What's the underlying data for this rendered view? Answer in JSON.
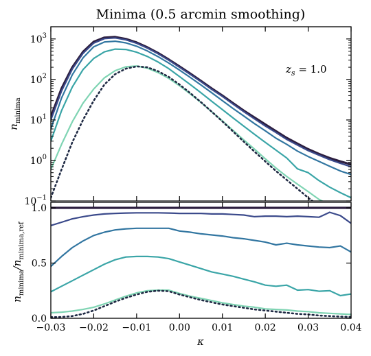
{
  "chart_data": {
    "type": "line",
    "title": "Minima (0.5 arcmin smoothing)",
    "xlabel": "κ",
    "xlim": [
      -0.03,
      0.04
    ],
    "xticks": [
      -0.03,
      -0.02,
      -0.01,
      0.0,
      0.01,
      0.02,
      0.03,
      0.04
    ],
    "xticklabels": [
      "−0.03",
      "−0.02",
      "−0.01",
      "0.00",
      "0.01",
      "0.02",
      "0.03",
      "0.04"
    ],
    "top_panel": {
      "ylabel_main": "n",
      "ylabel_sub": "minima",
      "yscale": "log",
      "ylim": [
        0.1,
        2000
      ],
      "yticks": [
        0.1,
        1,
        10,
        100,
        1000
      ],
      "ytick_bases": [
        "10",
        "10",
        "10",
        "10",
        "10"
      ],
      "ytick_exps": [
        "−1",
        "0",
        "1",
        "2",
        "3"
      ],
      "annotation_main": "z",
      "annotation_sub": "s",
      "annotation_rest": " = 1.0"
    },
    "bottom_panel": {
      "ylabel_main": "n",
      "ylabel_sub": "minima",
      "ylabel_mid": "/n",
      "ylabel_sub2": "minima,ref",
      "ylim": [
        0.0,
        1.05
      ],
      "yticks": [
        0.0,
        0.5,
        1.0
      ],
      "yticklabels": [
        "0.0",
        "0.5",
        "1.0"
      ]
    },
    "x": [
      -0.03,
      -0.0275,
      -0.025,
      -0.0225,
      -0.02,
      -0.0175,
      -0.015,
      -0.0125,
      -0.01,
      -0.0075,
      -0.005,
      -0.0025,
      0.0,
      0.0025,
      0.005,
      0.0075,
      0.01,
      0.0125,
      0.015,
      0.0175,
      0.02,
      0.0225,
      0.025,
      0.0275,
      0.03,
      0.0325,
      0.035,
      0.0375,
      0.04
    ],
    "series_top": [
      {
        "color": "#2c1e3f",
        "width": 3.2,
        "dash": "",
        "values": [
          12,
          60,
          200,
          480,
          850,
          1080,
          1120,
          1000,
          820,
          620,
          450,
          310,
          210,
          140,
          92,
          60,
          40,
          26,
          17,
          11.5,
          7.8,
          5.3,
          3.6,
          2.6,
          1.9,
          1.45,
          1.15,
          0.95,
          0.8
        ]
      },
      {
        "color": "#3b4a8b",
        "width": 2.2,
        "dash": "",
        "values": [
          10,
          52,
          180,
          440,
          790,
          1020,
          1060,
          950,
          780,
          595,
          430,
          298,
          200,
          133,
          88,
          57,
          38,
          24.5,
          16,
          10.6,
          7.1,
          4.9,
          3.3,
          2.4,
          1.75,
          1.35,
          1.05,
          0.85,
          0.7
        ]
      },
      {
        "color": "#3276a1",
        "width": 2.2,
        "dash": "",
        "values": [
          6,
          35,
          130,
          340,
          640,
          840,
          880,
          800,
          660,
          505,
          365,
          254,
          170,
          112,
          73,
          47,
          30,
          19.2,
          12.5,
          8.1,
          5.4,
          3.55,
          2.5,
          1.7,
          1.25,
          0.95,
          0.72,
          0.55,
          0.45
        ]
      },
      {
        "color": "#3aa5a7",
        "width": 2.2,
        "dash": "",
        "values": [
          3,
          17,
          65,
          175,
          330,
          480,
          560,
          550,
          470,
          370,
          270,
          185,
          118,
          75,
          47,
          29,
          18,
          11.2,
          7,
          4.4,
          2.8,
          1.8,
          1.15,
          0.62,
          0.5,
          0.32,
          0.22,
          0.16,
          0.12
        ]
      },
      {
        "color": "#7fd4b3",
        "width": 2.2,
        "dash": "",
        "values": [
          0.6,
          2.5,
          9,
          26,
          58,
          110,
          165,
          205,
          215,
          190,
          148,
          106,
          70,
          44,
          27,
          16,
          9.5,
          5.5,
          3.2,
          1.9,
          1.1,
          0.65,
          0.4,
          0.26,
          0.17,
          0.11,
          0.08,
          0.06,
          0.045
        ]
      },
      {
        "color": "#1f2a44",
        "width": 2.6,
        "dash": "2,4",
        "values": [
          0.12,
          0.6,
          2.8,
          10,
          30,
          75,
          135,
          185,
          210,
          200,
          160,
          115,
          75,
          46,
          27.5,
          16,
          9.2,
          5.2,
          2.9,
          1.65,
          0.95,
          0.55,
          0.33,
          0.2,
          0.12,
          0.075,
          0.05,
          0.035,
          0.025
        ]
      }
    ],
    "series_bottom": [
      {
        "color": "#2c1e3f",
        "width": 3.2,
        "dash": "",
        "values": [
          1,
          1,
          1,
          1,
          1,
          1,
          1,
          1,
          1,
          1,
          1,
          1,
          1,
          1,
          1,
          1,
          1,
          1,
          1,
          1,
          1,
          1,
          1,
          1,
          1,
          1,
          1,
          1,
          1
        ]
      },
      {
        "color": "#3b4a8b",
        "width": 2.2,
        "dash": "",
        "values": [
          0.84,
          0.87,
          0.9,
          0.92,
          0.935,
          0.945,
          0.95,
          0.953,
          0.955,
          0.955,
          0.955,
          0.953,
          0.95,
          0.95,
          0.95,
          0.945,
          0.945,
          0.94,
          0.935,
          0.92,
          0.925,
          0.925,
          0.92,
          0.925,
          0.92,
          0.915,
          0.96,
          0.93,
          0.86
        ]
      },
      {
        "color": "#3276a1",
        "width": 2.2,
        "dash": "",
        "values": [
          0.47,
          0.56,
          0.64,
          0.7,
          0.75,
          0.78,
          0.8,
          0.81,
          0.815,
          0.815,
          0.815,
          0.815,
          0.79,
          0.78,
          0.765,
          0.755,
          0.745,
          0.73,
          0.72,
          0.705,
          0.69,
          0.665,
          0.68,
          0.665,
          0.655,
          0.645,
          0.64,
          0.655,
          0.6
        ]
      },
      {
        "color": "#3aa5a7",
        "width": 2.2,
        "dash": "",
        "values": [
          0.24,
          0.29,
          0.34,
          0.39,
          0.44,
          0.49,
          0.53,
          0.555,
          0.56,
          0.56,
          0.555,
          0.54,
          0.51,
          0.48,
          0.45,
          0.42,
          0.4,
          0.38,
          0.355,
          0.33,
          0.3,
          0.29,
          0.3,
          0.255,
          0.26,
          0.245,
          0.25,
          0.205,
          0.22
        ]
      },
      {
        "color": "#7fd4b3",
        "width": 2.2,
        "dash": "",
        "values": [
          0.05,
          0.055,
          0.065,
          0.08,
          0.1,
          0.13,
          0.165,
          0.2,
          0.23,
          0.25,
          0.255,
          0.255,
          0.225,
          0.2,
          0.18,
          0.16,
          0.14,
          0.125,
          0.11,
          0.1,
          0.085,
          0.08,
          0.075,
          0.065,
          0.06,
          0.05,
          0.045,
          0.04,
          0.035
        ]
      },
      {
        "color": "#1f2a44",
        "width": 2.6,
        "dash": "2,4",
        "values": [
          0.01,
          0.012,
          0.02,
          0.04,
          0.07,
          0.11,
          0.15,
          0.185,
          0.215,
          0.24,
          0.25,
          0.245,
          0.215,
          0.19,
          0.165,
          0.145,
          0.125,
          0.11,
          0.095,
          0.08,
          0.07,
          0.06,
          0.05,
          0.04,
          0.035,
          0.025,
          0.02,
          0.015,
          0.012
        ]
      }
    ]
  }
}
